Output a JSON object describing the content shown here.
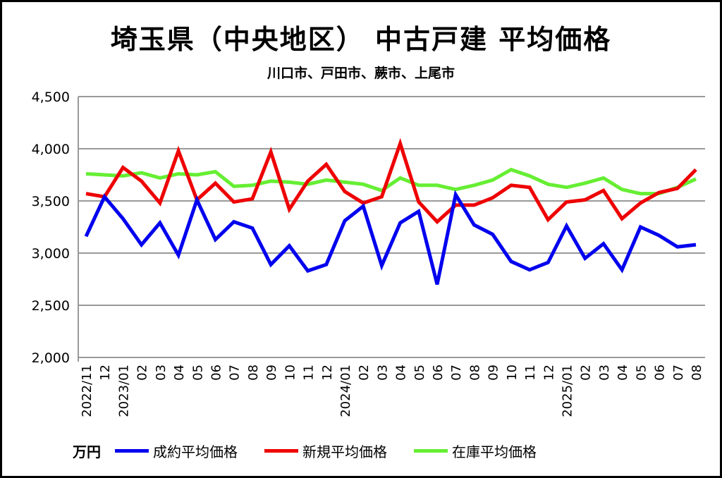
{
  "chart_data": {
    "type": "line",
    "title": "埼玉県（中央地区） 中古戸建 平均価格",
    "subtitle": "川口市、戸田市、蕨市、上尾市",
    "ylabel": "万円",
    "ylim": [
      2000,
      4500
    ],
    "yticks": [
      2000,
      2500,
      3000,
      3500,
      4000,
      4500
    ],
    "ytick_labels": [
      "2,000",
      "2,500",
      "3,000",
      "3,500",
      "4,000",
      "4,500"
    ],
    "grid": true,
    "legend_position": "bottom",
    "categories": [
      "2022/11",
      "12",
      "2023/01",
      "02",
      "03",
      "04",
      "05",
      "06",
      "07",
      "08",
      "09",
      "10",
      "11",
      "12",
      "2024/01",
      "02",
      "03",
      "04",
      "05",
      "06",
      "07",
      "08",
      "09",
      "10",
      "11",
      "12",
      "2025/01",
      "02",
      "03",
      "04",
      "05",
      "06",
      "07",
      "08"
    ],
    "series": [
      {
        "name": "成約平均価格",
        "color": "#0000ee",
        "values": [
          3160,
          3540,
          3330,
          3080,
          3290,
          2980,
          3510,
          3130,
          3300,
          3240,
          2890,
          3070,
          2830,
          2890,
          3310,
          3450,
          2880,
          3290,
          3400,
          2700,
          3560,
          3270,
          3180,
          2920,
          2840,
          2910,
          3260,
          2950,
          3090,
          2840,
          3250,
          3170,
          3060,
          3080
        ]
      },
      {
        "name": "新規平均価格",
        "color": "#ee0000",
        "values": [
          3570,
          3540,
          3820,
          3690,
          3480,
          3980,
          3510,
          3670,
          3490,
          3520,
          3970,
          3420,
          3690,
          3850,
          3590,
          3480,
          3540,
          4050,
          3490,
          3300,
          3460,
          3460,
          3530,
          3650,
          3630,
          3320,
          3490,
          3510,
          3600,
          3330,
          3480,
          3580,
          3620,
          3800
        ]
      },
      {
        "name": "在庫平均価格",
        "color": "#66ee33",
        "values": [
          3760,
          3750,
          3740,
          3770,
          3720,
          3760,
          3750,
          3780,
          3640,
          3650,
          3690,
          3680,
          3660,
          3700,
          3680,
          3660,
          3600,
          3720,
          3650,
          3650,
          3610,
          3650,
          3700,
          3800,
          3740,
          3660,
          3630,
          3670,
          3720,
          3610,
          3570,
          3570,
          3630,
          3710
        ]
      }
    ]
  }
}
